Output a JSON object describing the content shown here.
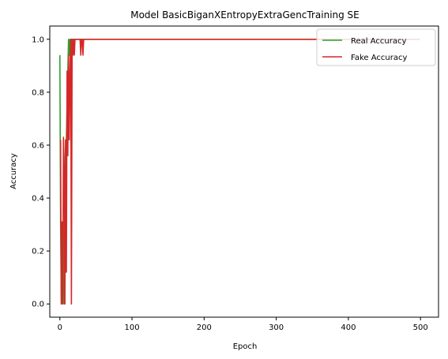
{
  "chart_data": {
    "type": "line",
    "title": "Model BasicBiganXEntropyExtraGencTraining SE",
    "xlabel": "Epoch",
    "ylabel": "Accuracy",
    "xlim": [
      -14,
      525
    ],
    "ylim": [
      -0.05,
      1.05
    ],
    "xticks": [
      0,
      100,
      200,
      300,
      400,
      500
    ],
    "yticks": [
      0.0,
      0.2,
      0.4,
      0.6,
      0.8,
      1.0
    ],
    "xtick_labels": [
      "0",
      "100",
      "200",
      "300",
      "400",
      "500"
    ],
    "ytick_labels": [
      "0.0",
      "0.2",
      "0.4",
      "0.6",
      "0.8",
      "1.0"
    ],
    "grid": false,
    "legend_position": "top-right",
    "series": [
      {
        "name": "Real Accuracy",
        "color": "#2ca02c",
        "x": [
          0,
          1,
          2,
          3,
          4,
          5,
          6,
          7,
          8,
          9,
          10,
          11,
          12,
          13,
          14,
          15,
          16,
          17,
          18,
          19,
          20,
          25,
          30,
          35,
          40,
          100,
          200,
          300,
          400,
          499
        ],
        "y": [
          0.94,
          0.31,
          0.0,
          0.28,
          0.0,
          0.31,
          0.0,
          0.5,
          0.62,
          0.62,
          0.75,
          0.87,
          1.0,
          0.94,
          1.0,
          0.88,
          1.0,
          1.0,
          1.0,
          1.0,
          1.0,
          1.0,
          1.0,
          1.0,
          1.0,
          1.0,
          1.0,
          1.0,
          1.0,
          1.0
        ]
      },
      {
        "name": "Fake Accuracy",
        "color": "#d62728",
        "x": [
          1,
          2,
          3,
          4,
          5,
          6,
          7,
          8,
          9,
          10,
          11,
          12,
          13,
          14,
          15,
          16,
          17,
          18,
          19,
          20,
          21,
          22,
          23,
          24,
          25,
          26,
          28,
          29,
          30,
          31,
          32,
          33,
          34,
          35,
          36,
          40,
          100,
          200,
          300,
          400,
          499
        ],
        "y": [
          0.62,
          0.0,
          0.31,
          0.0,
          0.63,
          0.5,
          0.0,
          0.62,
          0.12,
          0.88,
          0.56,
          0.94,
          0.62,
          0.88,
          1.0,
          0.0,
          1.0,
          0.94,
          1.0,
          0.94,
          1.0,
          1.0,
          1.0,
          1.0,
          1.0,
          1.0,
          1.0,
          0.94,
          1.0,
          1.0,
          0.94,
          1.0,
          1.0,
          1.0,
          1.0,
          1.0,
          1.0,
          1.0,
          1.0,
          1.0,
          1.0
        ]
      }
    ]
  }
}
